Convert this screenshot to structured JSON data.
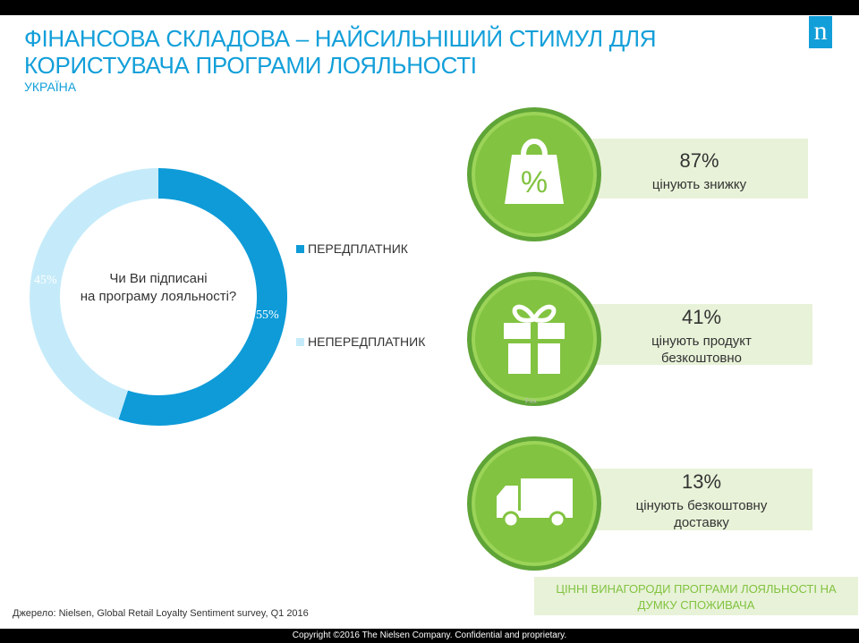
{
  "slide": {
    "title": "ФІНАНСОВА СКЛАДОВА – НАЙСИЛЬНІШИЙ СТИМУЛ ДЛЯ КОРИСТУВАЧА ПРОГРАМИ ЛОЯЛЬНОСТІ",
    "subtitle": "УКРАЇНА",
    "logo": "n",
    "source": "Джерело: Nielsen, Global Retail Loyalty Sentiment survey, Q1 2016",
    "copyright": "Copyright ©2016 The Nielsen Company. Confidential and proprietary.",
    "tiny_mark": "Fxx"
  },
  "colors": {
    "accent": "#129fd9",
    "subscriber": "#0e9bd8",
    "non_subscriber": "#c5ebfa",
    "green": "#82c341",
    "green_box": "#e8f2d8"
  },
  "chart_data": {
    "type": "pie",
    "donut": true,
    "center_text": [
      "Чи Ви підписані",
      "на програму лояльності?"
    ],
    "series": [
      {
        "name": "ПЕРЕДПЛАТНИК",
        "value": 55,
        "label": "55%",
        "color": "#0e9bd8"
      },
      {
        "name": "НЕПЕРЕДПЛАТНИК",
        "value": 45,
        "label": "45%",
        "color": "#c5ebfa"
      }
    ],
    "legend_position": "right"
  },
  "rewards": [
    {
      "icon": "shopping-bag-percent-icon",
      "percent": "87%",
      "text": [
        "цінують знижку"
      ]
    },
    {
      "icon": "gift-icon",
      "percent": "41%",
      "text": [
        "цінують продукт",
        "безкоштовно"
      ]
    },
    {
      "icon": "delivery-truck-icon",
      "percent": "13%",
      "text": [
        "цінують безкоштовну",
        "доставку"
      ]
    }
  ],
  "footer_note": [
    "ЦІННІ ВИНАГОРОДИ ПРОГРАМИ ЛОЯЛЬНОСТІ НА",
    "ДУМКУ СПОЖИВАЧА"
  ]
}
